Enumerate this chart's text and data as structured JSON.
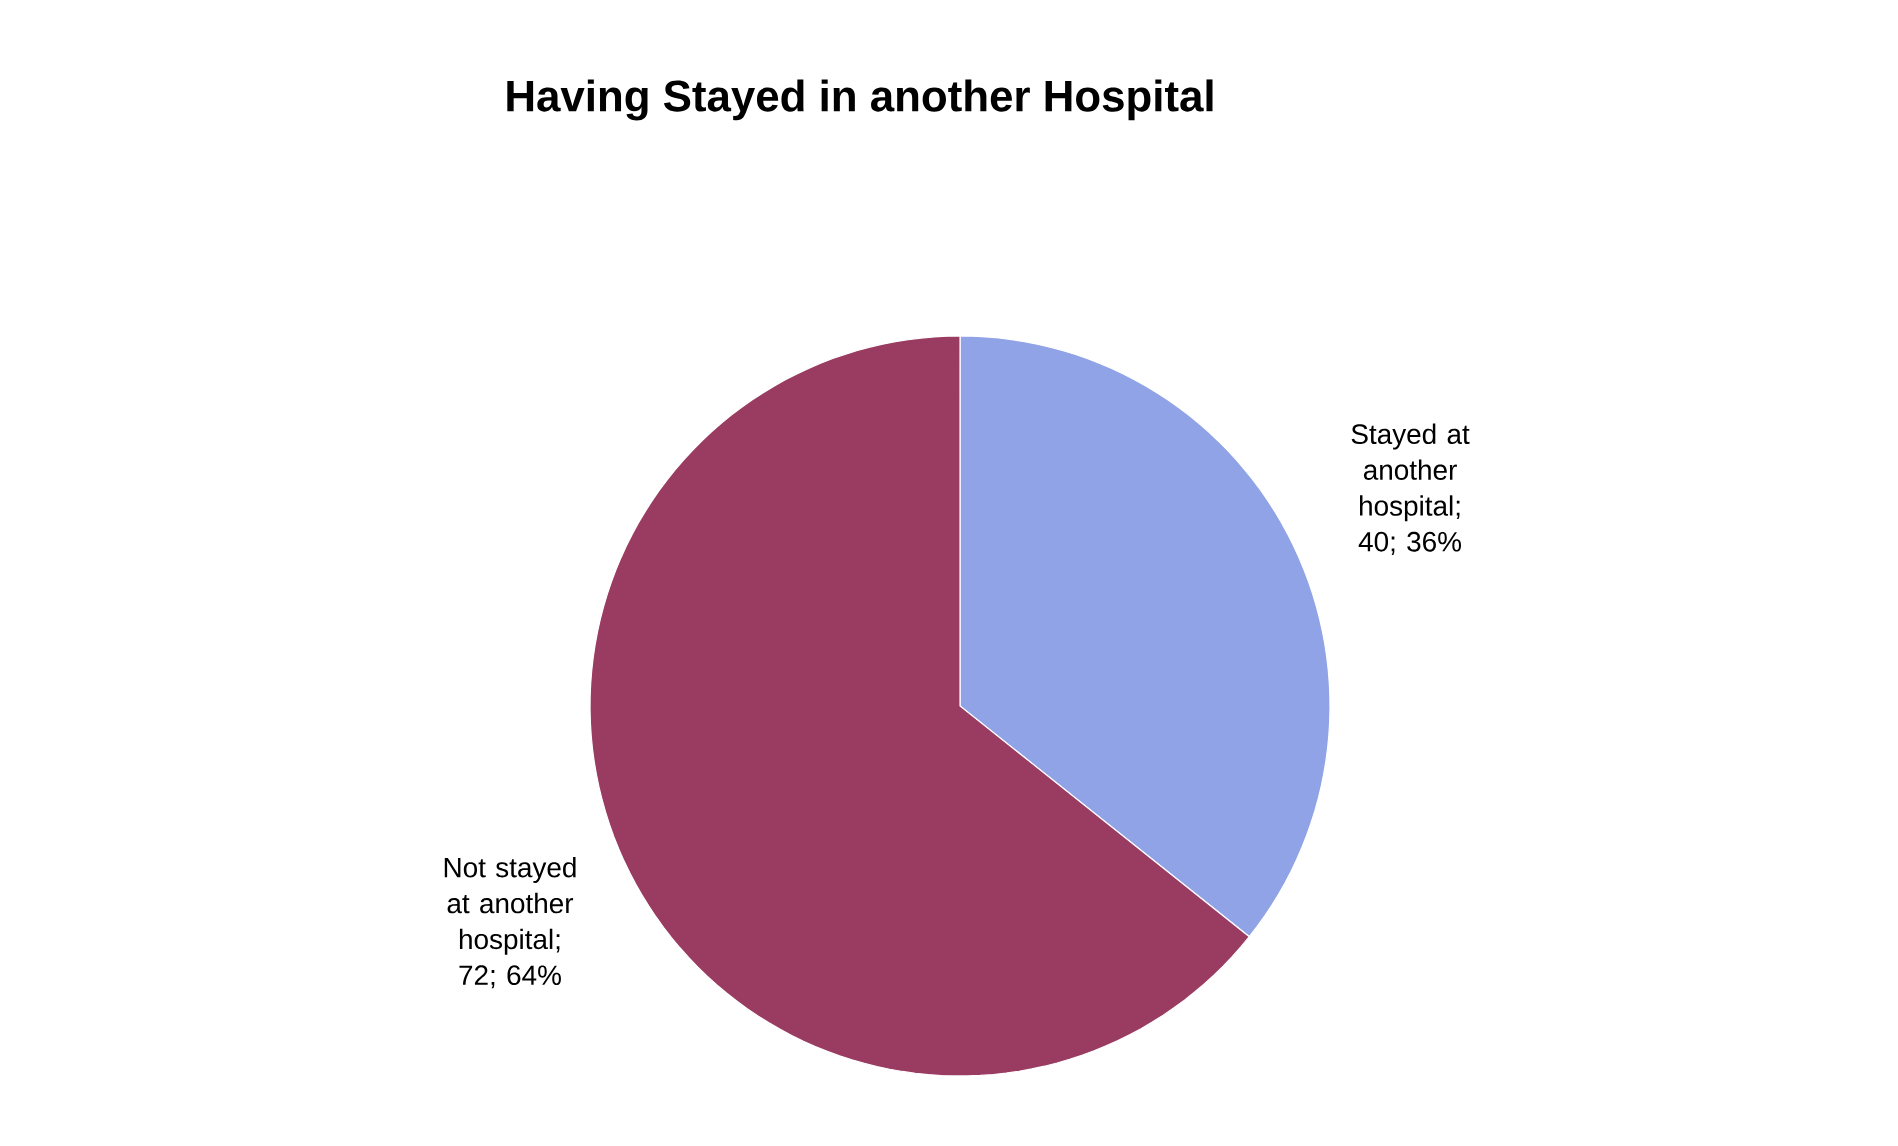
{
  "chart_data": {
    "type": "pie",
    "title": "Having Stayed in another Hospital",
    "categories": [
      "Stayed at another hospital; 40; 36%",
      "Not stayed at another hospital; 72; 64%"
    ],
    "values": [
      40,
      72
    ],
    "colors": [
      "#8fa3e6",
      "#9a3b62"
    ]
  }
}
